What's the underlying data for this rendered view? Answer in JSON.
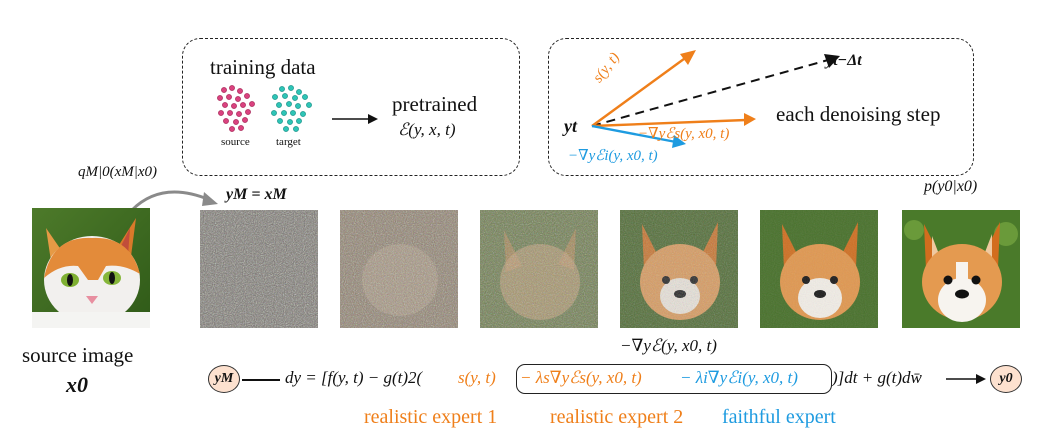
{
  "training_box": {
    "title": "training data",
    "source_label": "source",
    "target_label": "target",
    "pretrained_label": "pretrained",
    "energy": "ℰ(y, x, t)"
  },
  "step_box": {
    "y_t": "yt",
    "y_next": "yt−Δt",
    "score": "s(y, t)",
    "realistic_grad": "−∇yℰs(y, x0, t)",
    "faithful_grad": "−∇yℰi(y, x0, t)",
    "caption": "each denoising step"
  },
  "top": {
    "q_label": "qM|0(xM|x0)",
    "yM_eq": "yM = xM",
    "p_label": "p(y0|x0)"
  },
  "source": {
    "caption_line1": "source image",
    "caption_line2": "x0"
  },
  "guidance_label": "−∇yℰ(y, x0, t)",
  "sde": {
    "start_node": "yM",
    "end_node": "y0",
    "lhs": "dy = [f(y, t) − g(t)2(",
    "score_term": "s(y, t)",
    "realistic_term": "− λs∇yℰs(y, x0, t)",
    "faithful_term": "− λi∇yℰi(y, x0, t)",
    "rhs": ")]dt + g(t)dw̄"
  },
  "experts": {
    "realistic_1": "realistic expert 1",
    "realistic_2": "realistic expert 2",
    "faithful": "faithful expert"
  },
  "colors": {
    "orange": "#ef7f1a",
    "blue": "#1e9be0",
    "source_dots": "#d9427f",
    "target_dots": "#2ec4b6",
    "node_fill": "#fde1cf"
  },
  "noise_levels": [
    1.0,
    0.82,
    0.62,
    0.42,
    0.18,
    0.0
  ]
}
